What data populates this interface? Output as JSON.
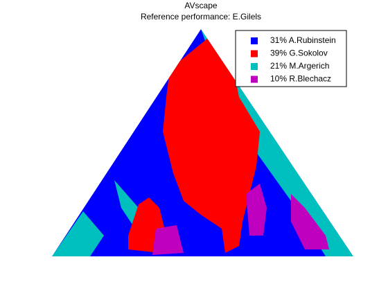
{
  "chart_data": {
    "type": "scape",
    "title": "AVscape",
    "subtitle": "Reference performance: E.Gilels",
    "series": [
      {
        "name": "31% A.Rubinstein",
        "color": "#0000ff"
      },
      {
        "name": "39% G.Sokolov",
        "color": "#ff0000"
      },
      {
        "name": "21% M.Argerich",
        "color": "#00bfbf"
      },
      {
        "name": "10% R.Blechacz",
        "color": "#bf00bf"
      }
    ]
  }
}
